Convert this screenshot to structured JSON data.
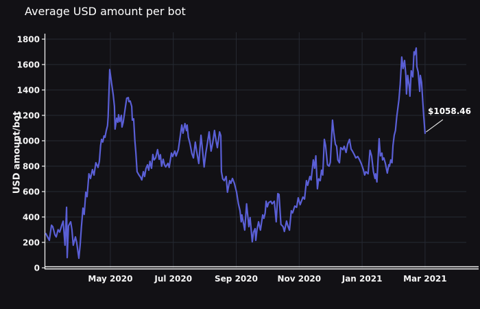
{
  "page": {
    "background": "#121115"
  },
  "chart_data": {
    "type": "line",
    "title": "Average USD amount per bot",
    "xlabel": "",
    "ylabel": "USD amount/bot",
    "legend": false,
    "grid": true,
    "line_color": "#5a5fd6",
    "grid_color": "#262a33",
    "axis_color": "#f2f2f2",
    "text_color": "#ffffff",
    "annotation": {
      "text": "$1058.46",
      "value": 1058.46,
      "x_month": 12.0
    },
    "x_unit": "months since 2020-03-01",
    "xlim": [
      -0.09,
      13.31
    ],
    "ylim": [
      0,
      1800
    ],
    "y_ticks": [
      0,
      200,
      400,
      600,
      800,
      1000,
      1200,
      1400,
      1600,
      1800
    ],
    "x_ticks": [
      {
        "m": 2,
        "label": "May 2020"
      },
      {
        "m": 4,
        "label": "Jul 2020"
      },
      {
        "m": 6,
        "label": "Sep 2020"
      },
      {
        "m": 8,
        "label": "Nov 2020"
      },
      {
        "m": 10,
        "label": "Jan 2021"
      },
      {
        "m": 12,
        "label": "Mar 2021"
      }
    ],
    "points": [
      [
        -0.05,
        270
      ],
      [
        0.06,
        216
      ],
      [
        0.13,
        335
      ],
      [
        0.17,
        324
      ],
      [
        0.24,
        260
      ],
      [
        0.28,
        243
      ],
      [
        0.34,
        300
      ],
      [
        0.39,
        281
      ],
      [
        0.45,
        330
      ],
      [
        0.5,
        367
      ],
      [
        0.56,
        178
      ],
      [
        0.61,
        476
      ],
      [
        0.63,
        80
      ],
      [
        0.67,
        330
      ],
      [
        0.74,
        362
      ],
      [
        0.78,
        300
      ],
      [
        0.82,
        178
      ],
      [
        0.89,
        243
      ],
      [
        0.93,
        200
      ],
      [
        1.0,
        75
      ],
      [
        1.04,
        180
      ],
      [
        1.08,
        320
      ],
      [
        1.13,
        470
      ],
      [
        1.17,
        420
      ],
      [
        1.22,
        595
      ],
      [
        1.26,
        560
      ],
      [
        1.32,
        740
      ],
      [
        1.37,
        703
      ],
      [
        1.43,
        773
      ],
      [
        1.48,
        730
      ],
      [
        1.54,
        827
      ],
      [
        1.61,
        790
      ],
      [
        1.65,
        838
      ],
      [
        1.69,
        962
      ],
      [
        1.72,
        1011
      ],
      [
        1.76,
        990
      ],
      [
        1.8,
        1038
      ],
      [
        1.83,
        1027
      ],
      [
        1.87,
        1080
      ],
      [
        1.91,
        1119
      ],
      [
        1.93,
        1189
      ],
      [
        1.98,
        1560
      ],
      [
        2.04,
        1449
      ],
      [
        2.09,
        1362
      ],
      [
        2.13,
        1270
      ],
      [
        2.15,
        1092
      ],
      [
        2.2,
        1178
      ],
      [
        2.24,
        1146
      ],
      [
        2.26,
        1205
      ],
      [
        2.3,
        1151
      ],
      [
        2.35,
        1200
      ],
      [
        2.37,
        1108
      ],
      [
        2.41,
        1146
      ],
      [
        2.48,
        1270
      ],
      [
        2.52,
        1335
      ],
      [
        2.57,
        1340
      ],
      [
        2.59,
        1308
      ],
      [
        2.63,
        1313
      ],
      [
        2.68,
        1270
      ],
      [
        2.7,
        1162
      ],
      [
        2.74,
        1173
      ],
      [
        2.78,
        1000
      ],
      [
        2.81,
        908
      ],
      [
        2.85,
        757
      ],
      [
        2.91,
        730
      ],
      [
        2.96,
        713
      ],
      [
        3.0,
        692
      ],
      [
        3.05,
        757
      ],
      [
        3.09,
        719
      ],
      [
        3.13,
        780
      ],
      [
        3.18,
        811
      ],
      [
        3.22,
        768
      ],
      [
        3.26,
        838
      ],
      [
        3.31,
        784
      ],
      [
        3.35,
        892
      ],
      [
        3.39,
        849
      ],
      [
        3.44,
        865
      ],
      [
        3.5,
        930
      ],
      [
        3.55,
        854
      ],
      [
        3.59,
        890
      ],
      [
        3.63,
        800
      ],
      [
        3.68,
        854
      ],
      [
        3.72,
        811
      ],
      [
        3.76,
        794
      ],
      [
        3.83,
        822
      ],
      [
        3.87,
        790
      ],
      [
        3.94,
        903
      ],
      [
        3.98,
        876
      ],
      [
        4.05,
        919
      ],
      [
        4.09,
        880
      ],
      [
        4.16,
        930
      ],
      [
        4.2,
        1000
      ],
      [
        4.27,
        1124
      ],
      [
        4.31,
        1060
      ],
      [
        4.37,
        1135
      ],
      [
        4.42,
        1080
      ],
      [
        4.44,
        1124
      ],
      [
        4.48,
        1027
      ],
      [
        4.53,
        980
      ],
      [
        4.59,
        900
      ],
      [
        4.64,
        865
      ],
      [
        4.7,
        989
      ],
      [
        4.74,
        920
      ],
      [
        4.81,
        821
      ],
      [
        4.88,
        1043
      ],
      [
        4.92,
        950
      ],
      [
        4.98,
        794
      ],
      [
        5.03,
        900
      ],
      [
        5.07,
        960
      ],
      [
        5.14,
        1070
      ],
      [
        5.2,
        919
      ],
      [
        5.25,
        980
      ],
      [
        5.31,
        1081
      ],
      [
        5.36,
        1000
      ],
      [
        5.4,
        946
      ],
      [
        5.47,
        1070
      ],
      [
        5.51,
        1040
      ],
      [
        5.53,
        757
      ],
      [
        5.57,
        700
      ],
      [
        5.62,
        686
      ],
      [
        5.68,
        719
      ],
      [
        5.72,
        595
      ],
      [
        5.79,
        686
      ],
      [
        5.83,
        665
      ],
      [
        5.88,
        703
      ],
      [
        5.94,
        665
      ],
      [
        6.01,
        595
      ],
      [
        6.07,
        503
      ],
      [
        6.12,
        450
      ],
      [
        6.16,
        362
      ],
      [
        6.18,
        416
      ],
      [
        6.23,
        350
      ],
      [
        6.27,
        297
      ],
      [
        6.33,
        503
      ],
      [
        6.4,
        324
      ],
      [
        6.44,
        395
      ],
      [
        6.51,
        205
      ],
      [
        6.55,
        280
      ],
      [
        6.6,
        308
      ],
      [
        6.62,
        216
      ],
      [
        6.66,
        300
      ],
      [
        6.71,
        362
      ],
      [
        6.77,
        297
      ],
      [
        6.84,
        416
      ],
      [
        6.88,
        390
      ],
      [
        6.92,
        432
      ],
      [
        6.95,
        524
      ],
      [
        6.99,
        480
      ],
      [
        7.03,
        513
      ],
      [
        7.1,
        524
      ],
      [
        7.14,
        503
      ],
      [
        7.21,
        524
      ],
      [
        7.27,
        362
      ],
      [
        7.32,
        584
      ],
      [
        7.36,
        578
      ],
      [
        7.42,
        341
      ],
      [
        7.49,
        324
      ],
      [
        7.53,
        286
      ],
      [
        7.6,
        368
      ],
      [
        7.64,
        330
      ],
      [
        7.69,
        297
      ],
      [
        7.75,
        449
      ],
      [
        7.79,
        432
      ],
      [
        7.86,
        486
      ],
      [
        7.92,
        476
      ],
      [
        7.97,
        551
      ],
      [
        8.03,
        497
      ],
      [
        8.08,
        530
      ],
      [
        8.12,
        557
      ],
      [
        8.17,
        541
      ],
      [
        8.23,
        686
      ],
      [
        8.27,
        649
      ],
      [
        8.34,
        719
      ],
      [
        8.38,
        692
      ],
      [
        8.45,
        849
      ],
      [
        8.49,
        784
      ],
      [
        8.53,
        881
      ],
      [
        8.58,
        622
      ],
      [
        8.62,
        700
      ],
      [
        8.67,
        686
      ],
      [
        8.71,
        768
      ],
      [
        8.75,
        730
      ],
      [
        8.8,
        1011
      ],
      [
        8.84,
        962
      ],
      [
        8.9,
        811
      ],
      [
        8.95,
        800
      ],
      [
        8.99,
        830
      ],
      [
        9.06,
        1162
      ],
      [
        9.1,
        1065
      ],
      [
        9.15,
        973
      ],
      [
        9.19,
        957
      ],
      [
        9.23,
        849
      ],
      [
        9.28,
        827
      ],
      [
        9.32,
        946
      ],
      [
        9.39,
        930
      ],
      [
        9.43,
        957
      ],
      [
        9.49,
        908
      ],
      [
        9.54,
        973
      ],
      [
        9.6,
        1011
      ],
      [
        9.65,
        935
      ],
      [
        9.69,
        919
      ],
      [
        9.75,
        892
      ],
      [
        9.8,
        865
      ],
      [
        9.86,
        876
      ],
      [
        9.91,
        854
      ],
      [
        9.97,
        822
      ],
      [
        10.04,
        773
      ],
      [
        10.08,
        730
      ],
      [
        10.12,
        757
      ],
      [
        10.19,
        740
      ],
      [
        10.25,
        925
      ],
      [
        10.3,
        881
      ],
      [
        10.36,
        757
      ],
      [
        10.41,
        703
      ],
      [
        10.43,
        740
      ],
      [
        10.47,
        676
      ],
      [
        10.54,
        1016
      ],
      [
        10.58,
        881
      ],
      [
        10.63,
        903
      ],
      [
        10.65,
        849
      ],
      [
        10.69,
        865
      ],
      [
        10.74,
        822
      ],
      [
        10.8,
        746
      ],
      [
        10.85,
        811
      ],
      [
        10.87,
        800
      ],
      [
        10.91,
        849
      ],
      [
        10.95,
        827
      ],
      [
        10.98,
        962
      ],
      [
        11.02,
        1043
      ],
      [
        11.06,
        1081
      ],
      [
        11.1,
        1189
      ],
      [
        11.17,
        1324
      ],
      [
        11.21,
        1443
      ],
      [
        11.26,
        1659
      ],
      [
        11.3,
        1568
      ],
      [
        11.35,
        1632
      ],
      [
        11.39,
        1514
      ],
      [
        11.41,
        1368
      ],
      [
        11.45,
        1514
      ],
      [
        11.5,
        1422
      ],
      [
        11.52,
        1351
      ],
      [
        11.56,
        1551
      ],
      [
        11.61,
        1503
      ],
      [
        11.65,
        1700
      ],
      [
        11.67,
        1676
      ],
      [
        11.72,
        1730
      ],
      [
        11.74,
        1584
      ],
      [
        11.78,
        1541
      ],
      [
        11.83,
        1389
      ],
      [
        11.85,
        1514
      ],
      [
        11.89,
        1459
      ],
      [
        11.93,
        1297
      ],
      [
        11.96,
        1189
      ],
      [
        12.0,
        1058.46
      ]
    ]
  }
}
